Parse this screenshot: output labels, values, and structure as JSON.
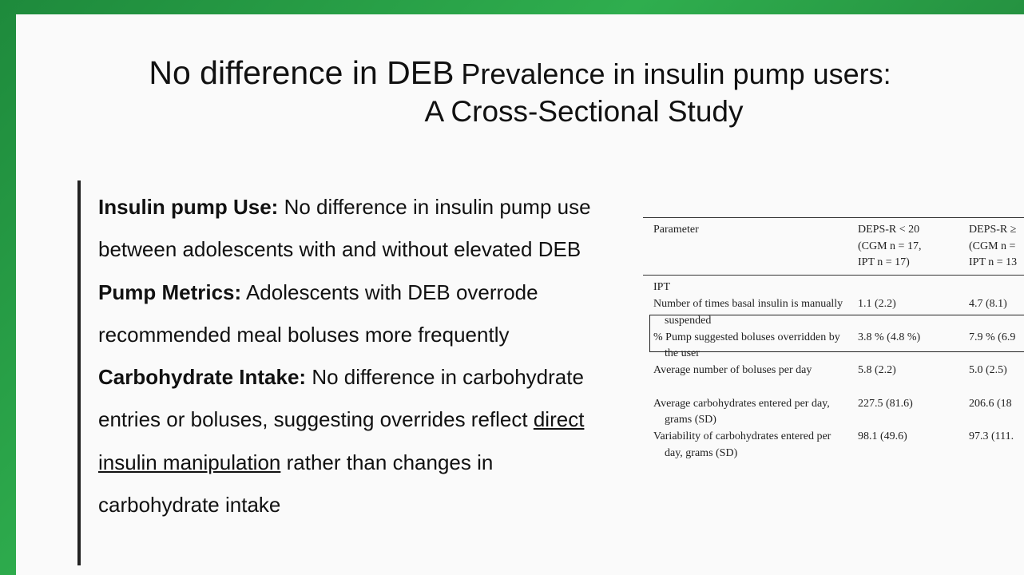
{
  "slide": {
    "title": {
      "main": "No difference in DEB",
      "rest": "Prevalence in insulin pump users:",
      "line2": "A Cross-Sectional Study"
    },
    "bullets": [
      {
        "label": "Insulin pump  Use:",
        "text": "No difference in insulin pump use between adolescents with and without elevated DEB"
      },
      {
        "label": "Pump Metrics:",
        "text": "Adolescents with DEB overrode recommended meal boluses more frequently"
      },
      {
        "label": "Carbohydrate Intake:",
        "text": "No difference in carbohydrate entries or boluses, suggesting overrides reflect",
        "underlined": "direct insulin manipulation",
        "text_after": "rather than changes in carbohydrate intake"
      }
    ],
    "table": {
      "header": [
        [
          "Parameter"
        ],
        [
          "DEPS-R < 20",
          "(CGM n = 17,",
          "IPT n = 17)"
        ],
        [
          "DEPS-R ≥",
          "(CGM n =",
          "IPT n = 13"
        ]
      ],
      "section": "IPT",
      "rows": [
        [
          "Number of times basal insulin is manually suspended",
          "1.1 (2.2)",
          "4.7 (8.1)"
        ],
        [
          "% Pump suggested boluses overridden by the user",
          "3.8 % (4.8 %)",
          "7.9 % (6.9"
        ],
        [
          "Average number of boluses per day",
          "5.8 (2.2)",
          "5.0 (2.5)"
        ],
        [
          "Average carbohydrates entered per day, grams (SD)",
          "227.5 (81.6)",
          "206.6 (18"
        ],
        [
          "Variability of carbohydrates entered per day, grams (SD)",
          "98.1 (49.6)",
          "97.3 (111."
        ]
      ]
    }
  }
}
